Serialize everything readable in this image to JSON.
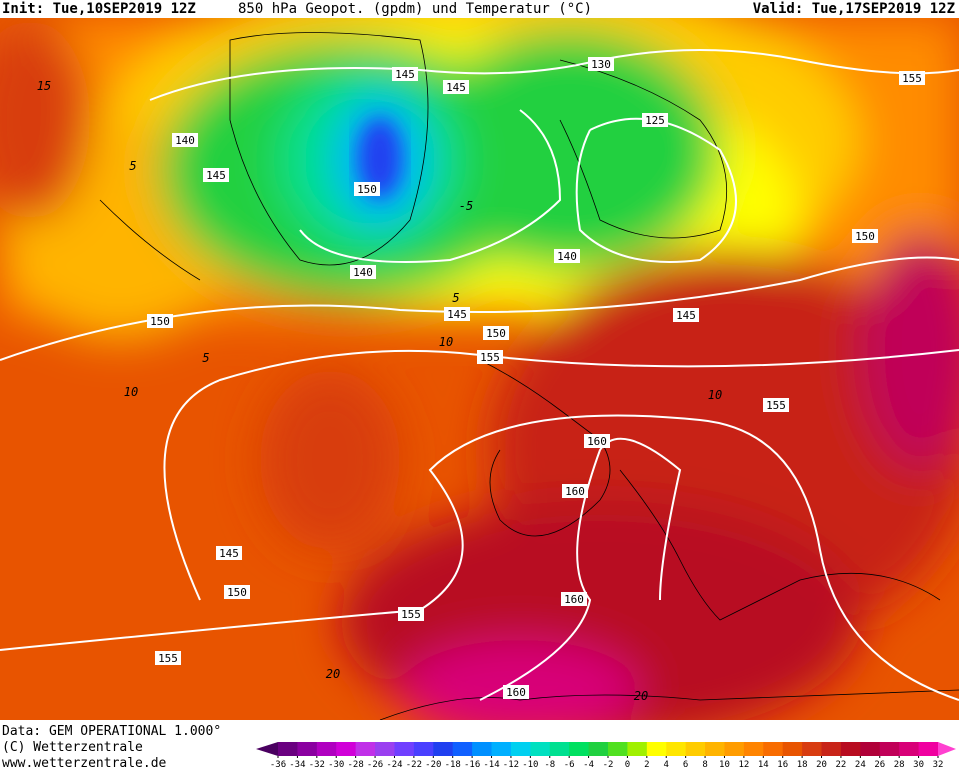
{
  "header": {
    "init": "Init: Tue,10SEP2019 12Z",
    "title": "850 hPa Geopot. (gpdm) und Temperatur (°C)",
    "valid": "Valid: Tue,17SEP2019 12Z"
  },
  "footer": {
    "data": "Data: GEM OPERATIONAL 1.000°",
    "copyright": "(C) Wetterzentrale",
    "url": "www.wetterzentrale.de"
  },
  "colorbar": {
    "labels": [
      -36,
      -34,
      -32,
      -30,
      -28,
      -26,
      -24,
      -22,
      -20,
      -18,
      -16,
      -14,
      -12,
      -10,
      -8,
      -6,
      -4,
      -2,
      0,
      2,
      4,
      6,
      8,
      10,
      12,
      14,
      16,
      18,
      20,
      22,
      24,
      26,
      28,
      30,
      32
    ],
    "colors": [
      "#4a0060",
      "#6a0080",
      "#8a00a0",
      "#b000c0",
      "#d000d8",
      "#c030e8",
      "#9a40f0",
      "#7040ff",
      "#4a40ff",
      "#2040f0",
      "#1060ff",
      "#0090ff",
      "#00b0ff",
      "#00d0f0",
      "#00e0c0",
      "#00e090",
      "#00e060",
      "#20d040",
      "#50e020",
      "#a0f000",
      "#ffff00",
      "#ffe600",
      "#ffcc00",
      "#ffb400",
      "#ff9c00",
      "#ff8400",
      "#f86c00",
      "#e85400",
      "#d83c10",
      "#c82418",
      "#b80c20",
      "#b00038",
      "#c00058",
      "#d80078",
      "#f000a0",
      "#ff40d0"
    ]
  },
  "contour_labels": [
    "145",
    "145",
    "130",
    "155",
    "125",
    "140",
    "145",
    "150",
    "150",
    "140",
    "140",
    "145",
    "150",
    "150",
    "145",
    "155",
    "155",
    "160",
    "160",
    "145",
    "150",
    "155",
    "160",
    "155",
    "160"
  ],
  "temperature_labels": [
    "15",
    "5",
    "10",
    "5",
    "10",
    "5",
    "-5",
    "20",
    "20",
    "10"
  ]
}
